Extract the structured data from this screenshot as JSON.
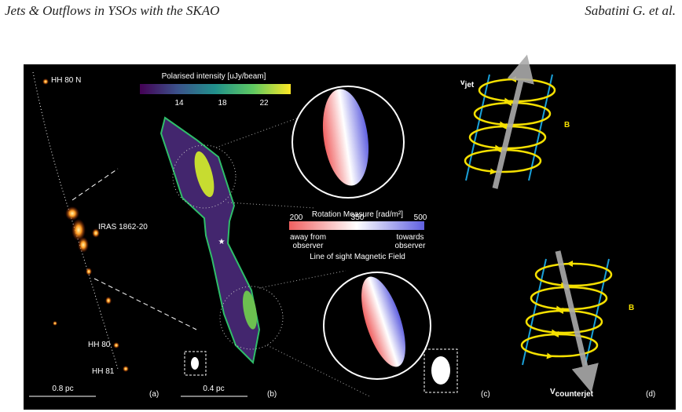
{
  "header": {
    "title": "Jets & Outflows in YSOs with the SKAO",
    "authors": "Sabatini G. et al."
  },
  "figure": {
    "panel_a": {
      "labels": [
        "HH 80 N",
        "IRAS 1862-20",
        "HH 80",
        "HH 81"
      ],
      "scale": "0.8 pc",
      "tag": "(a)"
    },
    "panel_b": {
      "colorbar_title": "Polarised intensity [uJy/beam]",
      "colorbar_ticks": [
        "14",
        "18",
        "22"
      ],
      "scale": "0.4 pc",
      "tag": "(b)",
      "rm_title": "Rotation Measure [rad/m²]",
      "rm_ticks": [
        "200",
        "350",
        "500"
      ],
      "rm_left": [
        "away from",
        "observer"
      ],
      "rm_right": [
        "towards",
        "observer"
      ],
      "rm_caption": "Line of sight Magnetic Field"
    },
    "panel_c": {
      "v_symbol": "v",
      "v_sub": "jet",
      "b": "B",
      "tag": "(c)"
    },
    "panel_d": {
      "v_symbol": "V",
      "v_sub": "counterjet",
      "b": "B",
      "tag": "(d)"
    }
  }
}
